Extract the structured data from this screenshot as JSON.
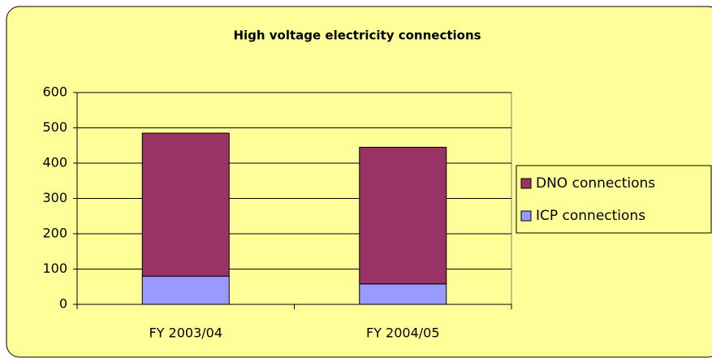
{
  "chart_data": {
    "type": "stacked_bar",
    "title": "High voltage electricity connections",
    "categories": [
      "FY 2003/04",
      "FY 2004/05"
    ],
    "series": [
      {
        "name": "ICP connections",
        "color": "#9999ff",
        "values": [
          80,
          58
        ]
      },
      {
        "name": "DNO connections",
        "color": "#993366",
        "values": [
          405,
          387
        ]
      }
    ],
    "ylim": [
      0,
      600
    ],
    "yticks": [
      0,
      100,
      200,
      300,
      400,
      500,
      600
    ],
    "grid": true,
    "legend": "right"
  }
}
